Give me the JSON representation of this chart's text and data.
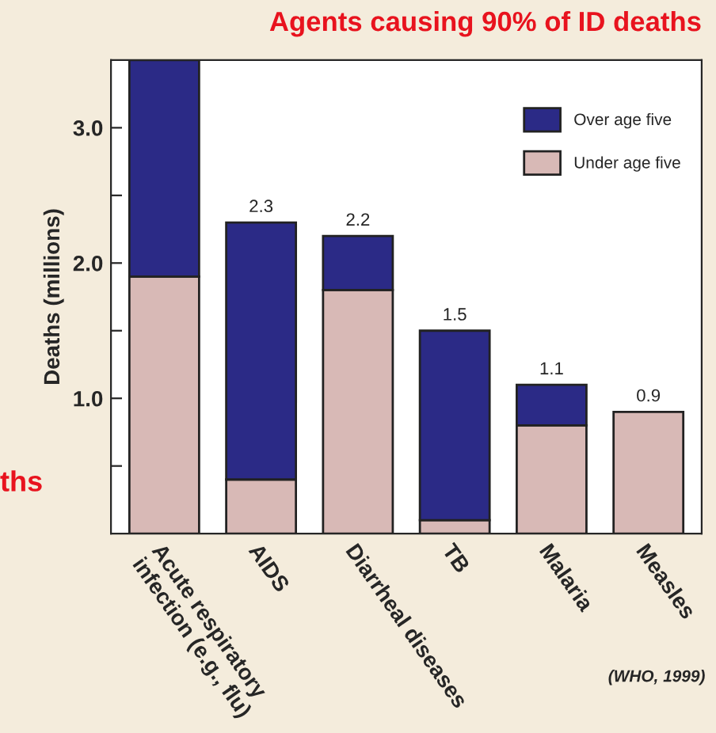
{
  "chart_data": {
    "type": "bar",
    "title": "Agents causing 90% of ID deaths",
    "ylabel": "Deaths (millions)",
    "categories": [
      "Acute respiratory infection (e.g., flu)",
      "AIDS",
      "Diarrheal diseases",
      "TB",
      "Malaria",
      "Measles"
    ],
    "stacked": true,
    "series": [
      {
        "name": "Under age five",
        "color": "#d8b9b6",
        "values": [
          1.9,
          0.4,
          1.8,
          0.1,
          0.8,
          0.9
        ]
      },
      {
        "name": "Over age five",
        "color": "#2b2a86",
        "values": [
          1.6,
          1.9,
          0.4,
          1.4,
          0.3,
          null
        ]
      }
    ],
    "totals": [
      null,
      "2.3",
      "2.2",
      "1.5",
      "1.1",
      "0.9"
    ],
    "ylim": [
      0,
      3.5
    ],
    "yticks": [
      {
        "value": 0.5,
        "label": null
      },
      {
        "value": 1.0,
        "label": "1.0"
      },
      {
        "value": 1.5,
        "label": null
      },
      {
        "value": 2.0,
        "label": "2.0"
      },
      {
        "value": 2.5,
        "label": null
      },
      {
        "value": 3.0,
        "label": "3.0"
      }
    ],
    "legend": "top right",
    "grid": false,
    "annotations": [
      "ths",
      "(WHO, 1999)"
    ]
  }
}
